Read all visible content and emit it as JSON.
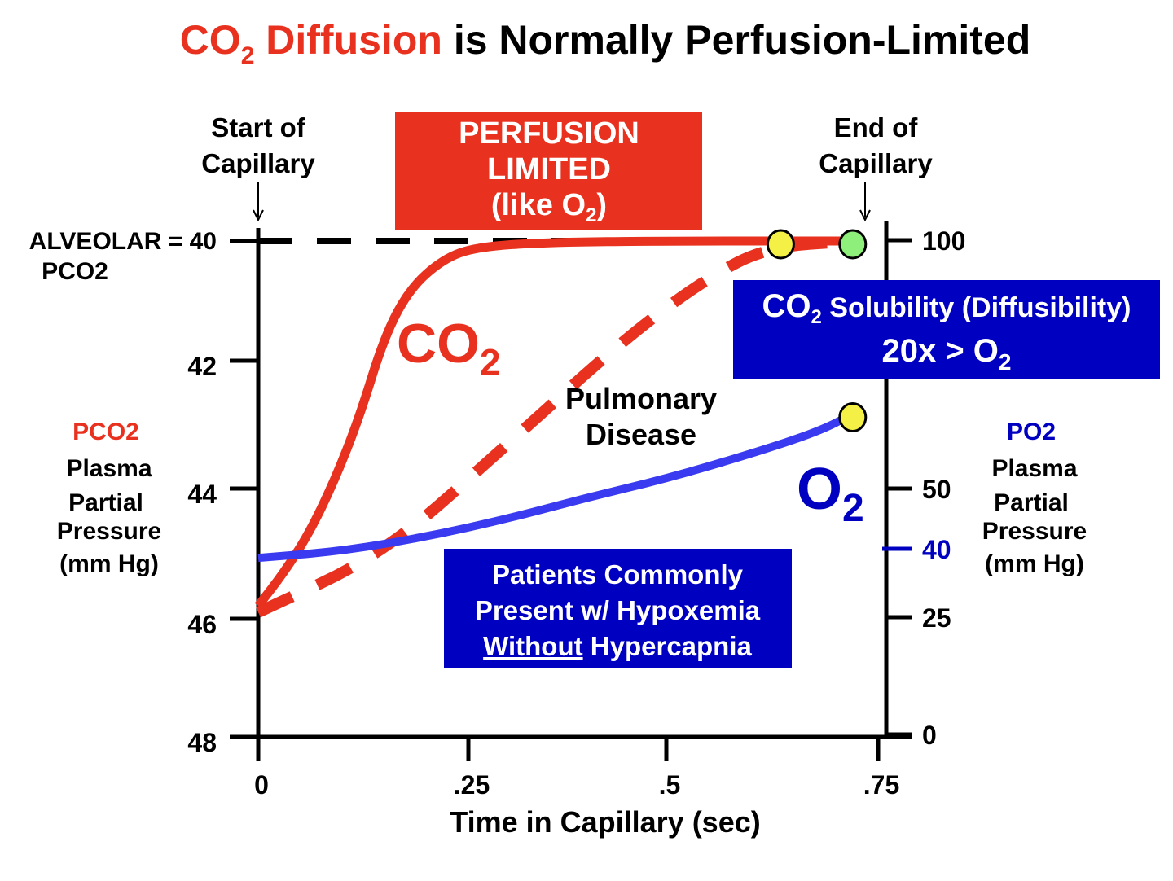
{
  "title": {
    "part1_main": "CO",
    "part1_sub": "2",
    "part1_rest": " Diffusion",
    "part2": " is Normally Perfusion-Limited",
    "highlight_color": "#e8321f"
  },
  "annotations": {
    "start_line1": "Start of",
    "start_line2": "Capillary",
    "end_line1": "End of",
    "end_line2": "Capillary",
    "perfusion_line1": "PERFUSION",
    "perfusion_line2": "LIMITED",
    "perfusion_line3a": "(like O",
    "perfusion_line3sub": "2",
    "perfusion_line3b": ")",
    "alveolar_line1": "ALVEOLAR = 40",
    "alveolar_line2": "PCO2",
    "co2_label": "CO",
    "co2_label_sub": "2",
    "o2_label": "O",
    "o2_label_sub": "2",
    "disease_line1": "Pulmonary",
    "disease_line2": "Disease",
    "solubility_line1a": "CO",
    "solubility_line1sub": "2",
    "solubility_line1b": " Solubility (Diffusibility)",
    "solubility_line2a": "20x  > O",
    "solubility_line2sub": "2",
    "patients_line1": "Patients Commonly",
    "patients_line2": "Present w/ Hypoxemia",
    "patients_line3a": "Without",
    "patients_line3b": " Hypercapnia"
  },
  "chart_data": {
    "type": "line",
    "xlabel": "Time in Capillary (sec)",
    "x_ticks": [
      {
        "value": 0,
        "label": "0"
      },
      {
        "value": 0.25,
        "label": ".25"
      },
      {
        "value": 0.5,
        "label": ".5"
      },
      {
        "value": 0.75,
        "label": ".75"
      }
    ],
    "left_axis": {
      "label_line1": "PCO2",
      "label_line2": "Plasma",
      "label_line3": "Partial",
      "label_line4": "Pressure",
      "label_line5": "(mm Hg)",
      "label_color": "#e8321f",
      "ticks": [
        {
          "value": 40,
          "label": ""
        },
        {
          "value": 42,
          "label": "42"
        },
        {
          "value": 44,
          "label": "44"
        },
        {
          "value": 46,
          "label": "46"
        },
        {
          "value": 48,
          "label": "48"
        }
      ],
      "inverted": true
    },
    "right_axis": {
      "label_line1": "PO2",
      "label_line2": "Plasma",
      "label_line3": "Partial",
      "label_line4": "Pressure",
      "label_line5": "(mm Hg)",
      "label_color": "#0000c0",
      "ticks": [
        {
          "value": 100,
          "label": "100"
        },
        {
          "value": 50,
          "label": "50"
        },
        {
          "value": 40,
          "label": "40",
          "highlight": true
        },
        {
          "value": 25,
          "label": "25"
        },
        {
          "value": 0,
          "label": "0"
        }
      ]
    },
    "series": [
      {
        "axis": "left",
        "style": "solid",
        "color": "#e8321f",
        "x": [
          0,
          0.03,
          0.06,
          0.09,
          0.12,
          0.15,
          0.18,
          0.22,
          0.26,
          0.35,
          0.5,
          0.72
        ],
        "y": [
          45.8,
          45.3,
          44.7,
          43.9,
          42.9,
          41.6,
          40.8,
          40.3,
          40.1,
          40.02,
          40.0,
          40.0
        ]
      },
      {
        "axis": "left",
        "style": "dashed",
        "color": "#e8321f",
        "x": [
          0,
          0.15,
          0.3,
          0.45,
          0.55,
          0.62,
          0.72
        ],
        "y": [
          45.9,
          45.0,
          43.3,
          41.6,
          40.6,
          40.1,
          40.0
        ]
      },
      {
        "axis": "left",
        "style": "dashed-reference",
        "color": "#000000",
        "x": [
          0,
          0.72
        ],
        "y": [
          40,
          40
        ]
      },
      {
        "axis": "right",
        "style": "solid",
        "color": "#3a3af0",
        "x": [
          0,
          0.1,
          0.2,
          0.3,
          0.4,
          0.5,
          0.6,
          0.68,
          0.72
        ],
        "y": [
          38,
          39.5,
          42,
          45,
          48.5,
          52,
          57,
          61.5,
          65
        ]
      }
    ],
    "markers": [
      {
        "axis": "left",
        "x": 0.635,
        "y": 40,
        "color": "#f5f045"
      },
      {
        "axis": "left",
        "x": 0.72,
        "y": 40,
        "color": "#8ef07a"
      },
      {
        "axis": "right",
        "x": 0.72,
        "y": 65,
        "color": "#f5f045"
      }
    ]
  }
}
